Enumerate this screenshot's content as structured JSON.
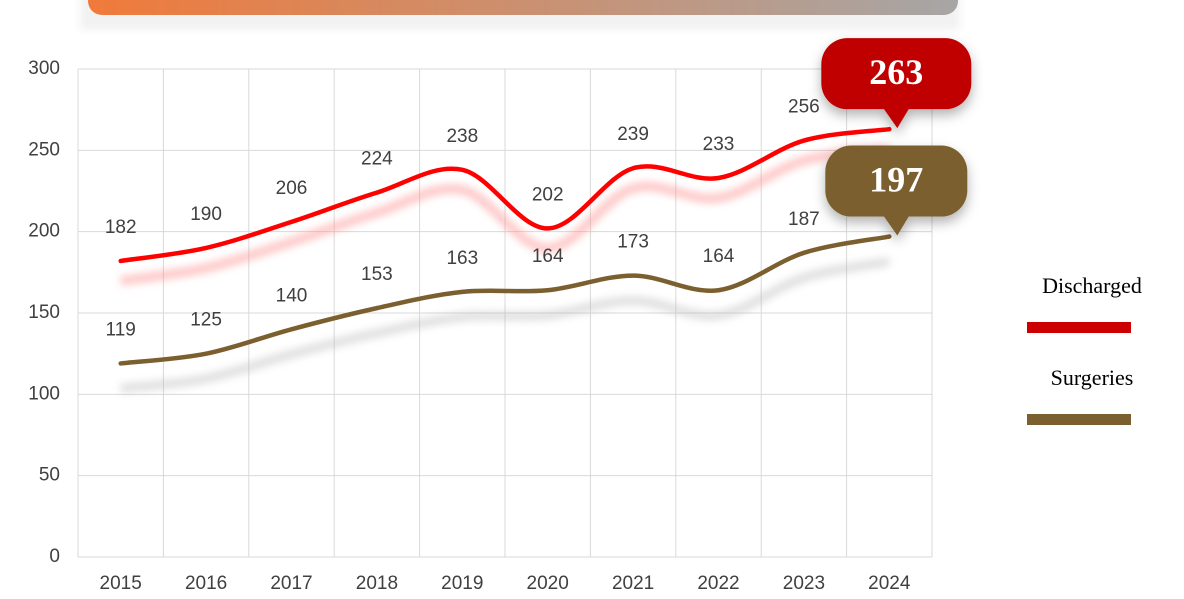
{
  "chart_data": {
    "type": "line",
    "categories": [
      "2015",
      "2016",
      "2017",
      "2018",
      "2019",
      "2020",
      "2021",
      "2022",
      "2023",
      "2024"
    ],
    "series": [
      {
        "name": "Discharged",
        "color": "#ff0000",
        "values": [
          182,
          190,
          206,
          224,
          238,
          202,
          239,
          233,
          256,
          263
        ]
      },
      {
        "name": "Surgeries",
        "color": "#7b5f2e",
        "values": [
          119,
          125,
          140,
          153,
          163,
          164,
          173,
          164,
          187,
          197
        ]
      }
    ],
    "ylim": [
      0,
      300
    ],
    "yticks": [
      0,
      50,
      100,
      150,
      200,
      250,
      300
    ],
    "grid": true,
    "legend": "right"
  }
}
